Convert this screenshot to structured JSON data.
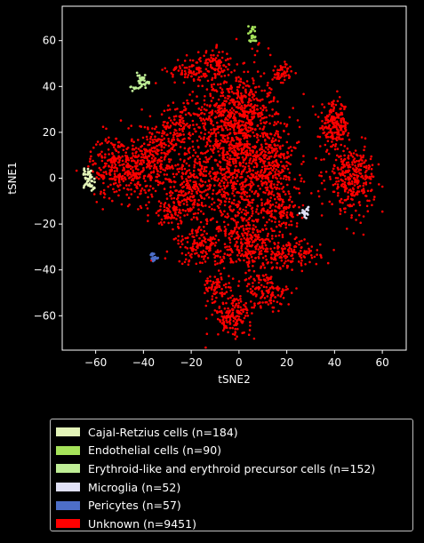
{
  "chart_data": {
    "type": "scatter",
    "title": "",
    "xlabel": "tSNE2",
    "ylabel": "tSNE1",
    "xlim": [
      -74,
      70
    ],
    "ylim": [
      -75,
      75
    ],
    "xticks": [
      -60,
      -40,
      -20,
      0,
      20,
      40,
      60
    ],
    "yticks": [
      -60,
      -40,
      -20,
      0,
      20,
      40,
      60
    ],
    "xtick_labels": [
      "−60",
      "−40",
      "−20",
      "0",
      "20",
      "40",
      "60"
    ],
    "ytick_labels": [
      "−60",
      "−40",
      "−20",
      "0",
      "20",
      "40",
      "60"
    ],
    "grid": false,
    "legend_position": "below plot",
    "series": [
      {
        "name": "Cajal-Retzius cells (n=184)",
        "color": "#e3f4b8",
        "points": [
          [
            -64,
            -1
          ],
          [
            -63,
            -3
          ],
          [
            -62,
            -4
          ],
          [
            -63,
            1
          ],
          [
            -62,
            0
          ],
          [
            -61,
            -2
          ],
          [
            -64,
            2
          ],
          [
            -65,
            4
          ],
          [
            -63,
            3
          ],
          [
            -61,
            -4
          ],
          [
            -62,
            2
          ],
          [
            -64,
            -3
          ]
        ]
      },
      {
        "name": "Endothelial cells (n=90)",
        "color": "#a6e35a",
        "points": [
          [
            5,
            64
          ],
          [
            6,
            62
          ],
          [
            5,
            61
          ],
          [
            6,
            60
          ],
          [
            5,
            63
          ],
          [
            6,
            66
          ]
        ]
      },
      {
        "name": "Erythroid-like and erythroid precursor cells (n=152)",
        "color": "#bfee96",
        "points": [
          [
            -42,
            42
          ],
          [
            -40,
            44
          ],
          [
            -39,
            41
          ],
          [
            -41,
            40
          ],
          [
            -43,
            39
          ],
          [
            -44,
            40
          ],
          [
            -40,
            43
          ],
          [
            -42,
            45
          ],
          [
            -38,
            42
          ],
          [
            -41,
            43
          ]
        ]
      },
      {
        "name": "Microglia (n=52)",
        "color": "#e0e0f5",
        "points": [
          [
            27,
            -15
          ],
          [
            28,
            -14
          ],
          [
            29,
            -13
          ],
          [
            28,
            -16
          ],
          [
            27,
            -16
          ]
        ]
      },
      {
        "name": "Pericytes (n=57)",
        "color": "#4d6ec8",
        "points": [
          [
            -36,
            -33
          ],
          [
            -35,
            -34
          ],
          [
            -36,
            -35
          ],
          [
            -35,
            -35
          ],
          [
            -36,
            -34
          ]
        ]
      },
      {
        "name": "Unknown (n=9451)",
        "color": "#ff0000",
        "clusters": [
          {
            "cx": 0,
            "cy": 10,
            "sx": 9,
            "sy": 20,
            "n": 1100
          },
          {
            "cx": -3,
            "cy": 28,
            "sx": 8,
            "sy": 6,
            "n": 250
          },
          {
            "cx": -10,
            "cy": 50,
            "sx": 3,
            "sy": 3,
            "n": 70
          },
          {
            "cx": -20,
            "cy": 47,
            "sx": 5,
            "sy": 3,
            "n": 90
          },
          {
            "cx": 18,
            "cy": 46,
            "sx": 2,
            "sy": 2,
            "n": 50
          },
          {
            "cx": -50,
            "cy": 5,
            "sx": 6,
            "sy": 7,
            "n": 320
          },
          {
            "cx": -35,
            "cy": 8,
            "sx": 5,
            "sy": 8,
            "n": 250
          },
          {
            "cx": -25,
            "cy": 22,
            "sx": 4,
            "sy": 5,
            "n": 120
          },
          {
            "cx": -20,
            "cy": -5,
            "sx": 6,
            "sy": 8,
            "n": 230
          },
          {
            "cx": -28,
            "cy": -15,
            "sx": 4,
            "sy": 3,
            "n": 80
          },
          {
            "cx": 15,
            "cy": 5,
            "sx": 5,
            "sy": 9,
            "n": 220
          },
          {
            "cx": 18,
            "cy": -15,
            "sx": 4,
            "sy": 3,
            "n": 100
          },
          {
            "cx": 40,
            "cy": 23,
            "sx": 3,
            "sy": 5,
            "n": 200
          },
          {
            "cx": 47,
            "cy": 0,
            "sx": 5,
            "sy": 7,
            "n": 320
          },
          {
            "cx": 5,
            "cy": -30,
            "sx": 6,
            "sy": 8,
            "n": 250
          },
          {
            "cx": -15,
            "cy": -30,
            "sx": 6,
            "sy": 4,
            "n": 150
          },
          {
            "cx": 22,
            "cy": -33,
            "sx": 6,
            "sy": 3,
            "n": 130
          },
          {
            "cx": -10,
            "cy": -48,
            "sx": 3,
            "sy": 3,
            "n": 70
          },
          {
            "cx": 12,
            "cy": -50,
            "sx": 5,
            "sy": 4,
            "n": 120
          },
          {
            "cx": -3,
            "cy": -60,
            "sx": 4,
            "sy": 4,
            "n": 150
          }
        ]
      }
    ]
  }
}
